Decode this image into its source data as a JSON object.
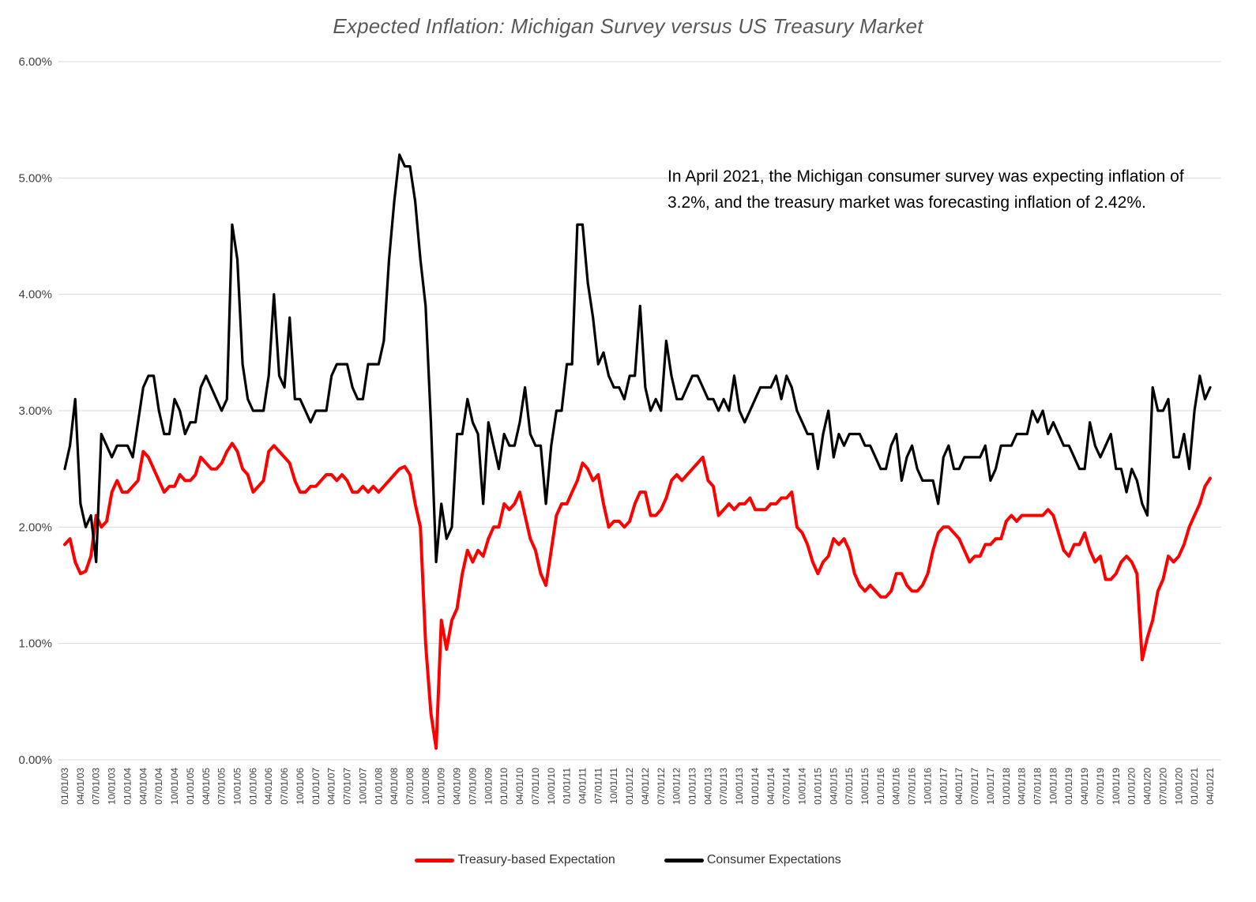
{
  "title": "Expected Inflation: Michigan Survey versus US Treasury Market",
  "annotation": "In April 2021, the Michigan consumer survey was expecting inflation of 3.2%, and the treasury market was forecasting inflation of 2.42%.",
  "legend": [
    {
      "label": "Treasury-based Expectation",
      "color": "#ff0000"
    },
    {
      "label": "Consumer Expectations",
      "color": "#000000"
    }
  ],
  "chart_data": {
    "type": "line",
    "title": "Expected Inflation: Michigan Survey versus US Treasury Market",
    "xlabel": "",
    "ylabel": "",
    "ylim": [
      0,
      6
    ],
    "grid": "horizontal",
    "legend_position": "bottom",
    "y_ticks": [
      "0.00%",
      "1.00%",
      "2.00%",
      "3.00%",
      "4.00%",
      "5.00%",
      "6.00%"
    ],
    "x_frequency": "monthly",
    "x_tick_labels": [
      "01/01/03",
      "04/01/03",
      "07/01/03",
      "10/01/03",
      "01/01/04",
      "04/01/04",
      "07/01/04",
      "10/01/04",
      "01/01/05",
      "04/01/05",
      "07/01/05",
      "10/01/05",
      "01/01/06",
      "04/01/06",
      "07/01/06",
      "10/01/06",
      "01/01/07",
      "04/01/07",
      "07/01/07",
      "10/01/07",
      "01/01/08",
      "04/01/08",
      "07/01/08",
      "10/01/08",
      "01/01/09",
      "04/01/09",
      "07/01/09",
      "10/01/09",
      "01/01/10",
      "04/01/10",
      "07/01/10",
      "10/01/10",
      "01/01/11",
      "04/01/11",
      "07/01/11",
      "10/01/11",
      "01/01/12",
      "04/01/12",
      "07/01/12",
      "10/01/12",
      "01/01/13",
      "04/01/13",
      "07/01/13",
      "10/01/13",
      "01/01/14",
      "04/01/14",
      "07/01/14",
      "10/01/14",
      "01/01/15",
      "04/01/15",
      "07/01/15",
      "10/01/15",
      "01/01/16",
      "04/01/16",
      "07/01/16",
      "10/01/16",
      "01/01/17",
      "04/01/17",
      "07/01/17",
      "10/01/17",
      "01/01/18",
      "04/01/18",
      "07/01/18",
      "10/01/18",
      "01/01/19",
      "04/01/19",
      "07/01/19",
      "10/01/19",
      "01/01/20",
      "04/01/20",
      "07/01/20",
      "10/01/20",
      "01/01/21",
      "04/01/21"
    ],
    "series": [
      {
        "name": "Treasury-based Expectation",
        "color": "#ff0000",
        "values": [
          1.85,
          1.9,
          1.7,
          1.6,
          1.62,
          1.75,
          2.1,
          2.0,
          2.05,
          2.3,
          2.4,
          2.3,
          2.3,
          2.35,
          2.4,
          2.65,
          2.6,
          2.5,
          2.4,
          2.3,
          2.35,
          2.35,
          2.45,
          2.4,
          2.4,
          2.45,
          2.6,
          2.55,
          2.5,
          2.5,
          2.55,
          2.65,
          2.72,
          2.65,
          2.5,
          2.45,
          2.3,
          2.35,
          2.4,
          2.65,
          2.7,
          2.65,
          2.6,
          2.55,
          2.4,
          2.3,
          2.3,
          2.35,
          2.35,
          2.4,
          2.45,
          2.45,
          2.4,
          2.45,
          2.4,
          2.3,
          2.3,
          2.35,
          2.3,
          2.35,
          2.3,
          2.35,
          2.4,
          2.45,
          2.5,
          2.52,
          2.45,
          2.2,
          2.0,
          1.0,
          0.4,
          0.1,
          1.2,
          0.95,
          1.2,
          1.3,
          1.6,
          1.8,
          1.7,
          1.8,
          1.75,
          1.9,
          2.0,
          2.0,
          2.2,
          2.15,
          2.2,
          2.3,
          2.1,
          1.9,
          1.8,
          1.6,
          1.5,
          1.8,
          2.1,
          2.2,
          2.2,
          2.3,
          2.4,
          2.55,
          2.5,
          2.4,
          2.45,
          2.2,
          2.0,
          2.05,
          2.05,
          2.0,
          2.05,
          2.2,
          2.3,
          2.3,
          2.1,
          2.1,
          2.15,
          2.25,
          2.4,
          2.45,
          2.4,
          2.45,
          2.5,
          2.55,
          2.6,
          2.4,
          2.35,
          2.1,
          2.15,
          2.2,
          2.15,
          2.2,
          2.2,
          2.25,
          2.15,
          2.15,
          2.15,
          2.2,
          2.2,
          2.25,
          2.25,
          2.3,
          2.0,
          1.95,
          1.85,
          1.7,
          1.6,
          1.7,
          1.75,
          1.9,
          1.85,
          1.9,
          1.8,
          1.6,
          1.5,
          1.45,
          1.5,
          1.45,
          1.4,
          1.4,
          1.45,
          1.6,
          1.6,
          1.5,
          1.45,
          1.45,
          1.5,
          1.6,
          1.8,
          1.95,
          2.0,
          2.0,
          1.95,
          1.9,
          1.8,
          1.7,
          1.75,
          1.75,
          1.85,
          1.85,
          1.9,
          1.9,
          2.05,
          2.1,
          2.05,
          2.1,
          2.1,
          2.1,
          2.1,
          2.1,
          2.15,
          2.1,
          1.95,
          1.8,
          1.75,
          1.85,
          1.85,
          1.95,
          1.8,
          1.7,
          1.75,
          1.55,
          1.55,
          1.6,
          1.7,
          1.75,
          1.7,
          1.6,
          0.86,
          1.05,
          1.2,
          1.45,
          1.55,
          1.75,
          1.7,
          1.75,
          1.85,
          2.0,
          2.1,
          2.2,
          2.35,
          2.42
        ]
      },
      {
        "name": "Consumer Expectations",
        "color": "#000000",
        "values": [
          2.5,
          2.7,
          3.1,
          2.2,
          2.0,
          2.1,
          1.7,
          2.8,
          2.7,
          2.6,
          2.7,
          2.7,
          2.7,
          2.6,
          2.9,
          3.2,
          3.3,
          3.3,
          3.0,
          2.8,
          2.8,
          3.1,
          3.0,
          2.8,
          2.9,
          2.9,
          3.2,
          3.3,
          3.2,
          3.1,
          3.0,
          3.1,
          4.6,
          4.3,
          3.4,
          3.1,
          3.0,
          3.0,
          3.0,
          3.3,
          4.0,
          3.3,
          3.2,
          3.8,
          3.1,
          3.1,
          3.0,
          2.9,
          3.0,
          3.0,
          3.0,
          3.3,
          3.4,
          3.4,
          3.4,
          3.2,
          3.1,
          3.1,
          3.4,
          3.4,
          3.4,
          3.6,
          4.3,
          4.8,
          5.2,
          5.1,
          5.1,
          4.8,
          4.3,
          3.9,
          2.9,
          1.7,
          2.2,
          1.9,
          2.0,
          2.8,
          2.8,
          3.1,
          2.9,
          2.8,
          2.2,
          2.9,
          2.7,
          2.5,
          2.8,
          2.7,
          2.7,
          2.9,
          3.2,
          2.8,
          2.7,
          2.7,
          2.2,
          2.7,
          3.0,
          3.0,
          3.4,
          3.4,
          4.6,
          4.6,
          4.1,
          3.8,
          3.4,
          3.5,
          3.3,
          3.2,
          3.2,
          3.1,
          3.3,
          3.3,
          3.9,
          3.2,
          3.0,
          3.1,
          3.0,
          3.6,
          3.3,
          3.1,
          3.1,
          3.2,
          3.3,
          3.3,
          3.2,
          3.1,
          3.1,
          3.0,
          3.1,
          3.0,
          3.3,
          3.0,
          2.9,
          3.0,
          3.1,
          3.2,
          3.2,
          3.2,
          3.3,
          3.1,
          3.3,
          3.2,
          3.0,
          2.9,
          2.8,
          2.8,
          2.5,
          2.8,
          3.0,
          2.6,
          2.8,
          2.7,
          2.8,
          2.8,
          2.8,
          2.7,
          2.7,
          2.6,
          2.5,
          2.5,
          2.7,
          2.8,
          2.4,
          2.6,
          2.7,
          2.5,
          2.4,
          2.4,
          2.4,
          2.2,
          2.6,
          2.7,
          2.5,
          2.5,
          2.6,
          2.6,
          2.6,
          2.6,
          2.7,
          2.4,
          2.5,
          2.7,
          2.7,
          2.7,
          2.8,
          2.8,
          2.8,
          3.0,
          2.9,
          3.0,
          2.8,
          2.9,
          2.8,
          2.7,
          2.7,
          2.6,
          2.5,
          2.5,
          2.9,
          2.7,
          2.6,
          2.7,
          2.8,
          2.5,
          2.5,
          2.3,
          2.5,
          2.4,
          2.2,
          2.1,
          3.2,
          3.0,
          3.0,
          3.1,
          2.6,
          2.6,
          2.8,
          2.5,
          3.0,
          3.3,
          3.1,
          3.2
        ]
      }
    ]
  }
}
